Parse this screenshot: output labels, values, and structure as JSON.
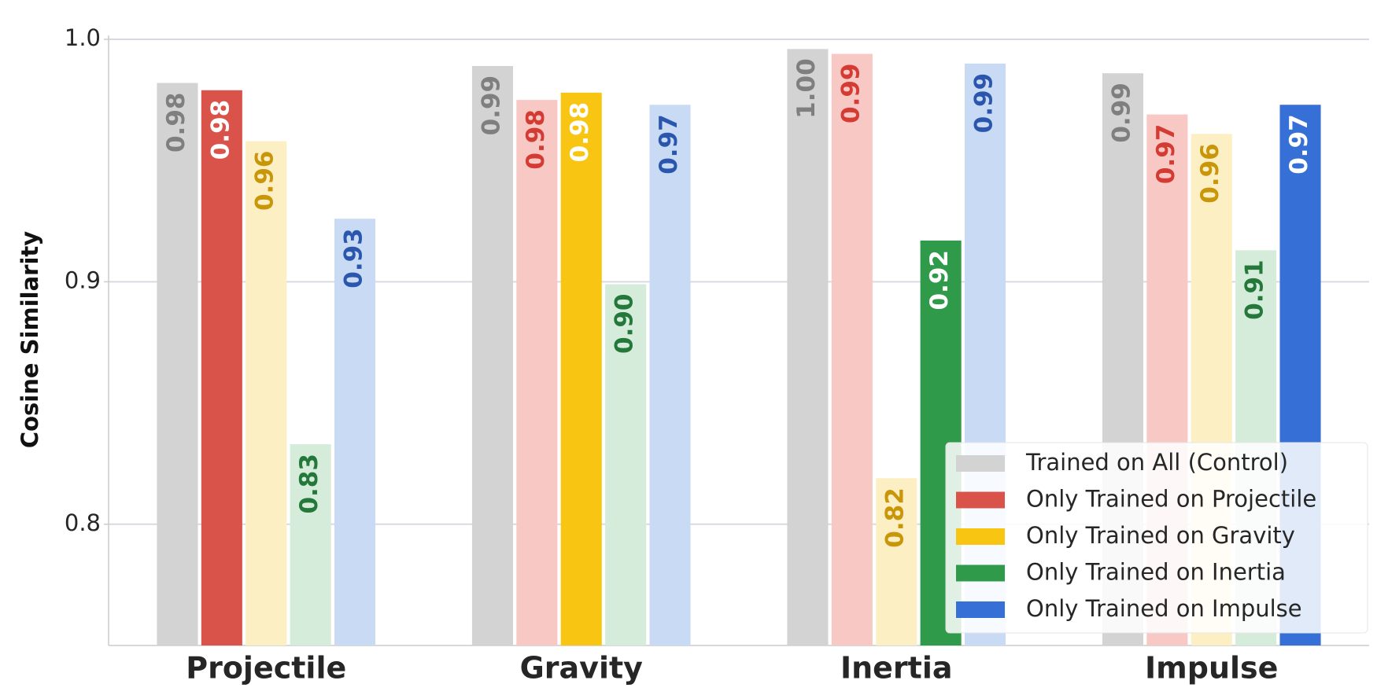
{
  "chart_data": {
    "type": "bar",
    "y_label": "Cosine Similarity",
    "categories": [
      "Projectile",
      "Gravity",
      "Inertia",
      "Impulse"
    ],
    "ylim": [
      0.75,
      1.0
    ],
    "yticks": [
      0.8,
      0.9,
      {
        "value": 1,
        "label": "1.0"
      }
    ],
    "grid": true,
    "legend_position": "lower right",
    "series": [
      {
        "name": "Trained on All (Control)",
        "color": "#d3d3d3",
        "bar_colors": [
          "#d3d3d3",
          "#d3d3d3",
          "#d3d3d3",
          "#d3d3d3"
        ],
        "label_colors": [
          "#7f7f7f",
          "#7f7f7f",
          "#7f7f7f",
          "#7f7f7f"
        ],
        "values": [
          0.982,
          0.989,
          0.996,
          0.986
        ],
        "value_labels": [
          "0.98",
          "0.99",
          "1.00",
          "0.99"
        ]
      },
      {
        "name": "Only Trained on Projectile",
        "color": "#d9534a",
        "bar_colors": [
          "#d9534a",
          "#f8c8c5",
          "#f8c8c5",
          "#f8c8c5"
        ],
        "label_colors": [
          "#ffffff",
          "#d33b33",
          "#d33b33",
          "#d33b33"
        ],
        "values": [
          0.979,
          0.975,
          0.994,
          0.969
        ],
        "value_labels": [
          "0.98",
          "0.98",
          "0.99",
          "0.97"
        ]
      },
      {
        "name": "Only Trained on Gravity",
        "color": "#f9c513",
        "bar_colors": [
          "#fdefc4",
          "#f9c513",
          "#fdefc4",
          "#fdefc4"
        ],
        "label_colors": [
          "#c9960a",
          "#ffffff",
          "#c9960a",
          "#c9960a"
        ],
        "values": [
          0.958,
          0.978,
          0.819,
          0.961
        ],
        "value_labels": [
          "0.96",
          "0.98",
          "0.82",
          "0.96"
        ]
      },
      {
        "name": "Only Trained on Inertia",
        "color": "#2e9a4a",
        "bar_colors": [
          "#d6ecdb",
          "#d6ecdb",
          "#2e9a4a",
          "#d6ecdb"
        ],
        "label_colors": [
          "#23783a",
          "#23783a",
          "#ffffff",
          "#23783a"
        ],
        "values": [
          0.833,
          0.899,
          0.917,
          0.913
        ],
        "value_labels": [
          "0.83",
          "0.90",
          "0.92",
          "0.91"
        ]
      },
      {
        "name": "Only Trained on Impulse",
        "color": "#3670d6",
        "bar_colors": [
          "#c9daf5",
          "#c9daf5",
          "#c9daf5",
          "#3670d6"
        ],
        "label_colors": [
          "#2a57ad",
          "#2a57ad",
          "#2a57ad",
          "#ffffff"
        ],
        "values": [
          0.926,
          0.973,
          0.99,
          0.973
        ],
        "value_labels": [
          "0.93",
          "0.97",
          "0.99",
          "0.97"
        ]
      }
    ]
  }
}
